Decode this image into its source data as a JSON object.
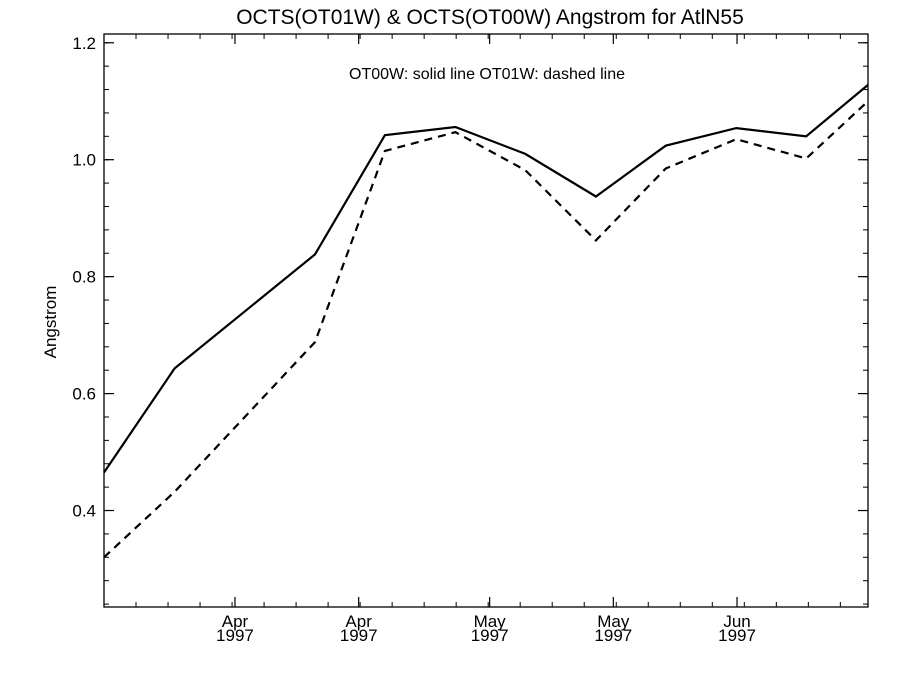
{
  "chart_data": {
    "type": "line",
    "title": "OCTS(OT01W) & OCTS(OT00W)  Angstrom for AtlN55",
    "annotation": "OT00W: solid line   OT01W: dashed line",
    "xlabel": "",
    "ylabel": "Angstrom",
    "ylim": [
      0.235,
      1.215
    ],
    "yticks": [
      {
        "value": 0.4,
        "label": "0.4"
      },
      {
        "value": 0.6,
        "label": "0.6"
      },
      {
        "value": 0.8,
        "label": "0.8"
      },
      {
        "value": 1.0,
        "label": "1.0"
      },
      {
        "value": 1.2,
        "label": "1.2"
      }
    ],
    "xlim": [
      0,
      105
    ],
    "xticks": [
      {
        "value": 18,
        "label": [
          "Apr",
          "1997"
        ]
      },
      {
        "value": 35,
        "label": [
          "Apr",
          "1997"
        ]
      },
      {
        "value": 53,
        "label": [
          "May",
          "1997"
        ]
      },
      {
        "value": 70,
        "label": [
          "May",
          "1997"
        ]
      },
      {
        "value": 87,
        "label": [
          "Jun",
          "1997"
        ]
      }
    ],
    "series": [
      {
        "style": "solid",
        "x": [
          0,
          9.7,
          29,
          38.6,
          48.3,
          57.9,
          67.6,
          77.2,
          86.9,
          96.5,
          105
        ],
        "y": [
          0.465,
          0.643,
          0.838,
          1.042,
          1.056,
          1.01,
          0.937,
          1.024,
          1.054,
          1.04,
          1.128
        ]
      },
      {
        "style": "dashed",
        "x": [
          0,
          9.7,
          29,
          38.6,
          48.3,
          57.9,
          67.6,
          77.2,
          86.9,
          96.5,
          105
        ],
        "y": [
          0.32,
          0.432,
          0.688,
          1.015,
          1.047,
          0.982,
          0.862,
          0.985,
          1.035,
          1.002,
          1.1
        ]
      }
    ],
    "grid": false
  }
}
